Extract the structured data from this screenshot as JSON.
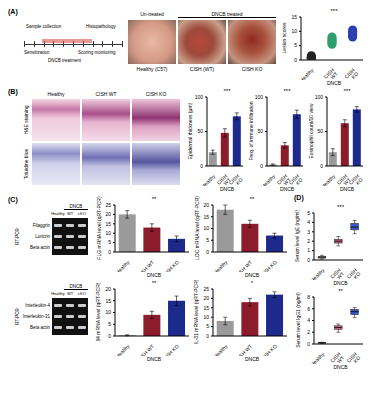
{
  "panel_labels": [
    "(A)",
    "(B)",
    "(C)",
    "(D)"
  ],
  "timeline": {
    "labels": [
      "Sample collection",
      "Sensitization",
      "DNCB treatment",
      "Scoring monitoring",
      "Histopathology"
    ]
  },
  "photos": {
    "headers": [
      "Un-treated",
      "DNCB treated"
    ],
    "labels": [
      "Healthy (C57)",
      "CISH (WT)",
      "CISH KO"
    ]
  },
  "histology": {
    "columns": [
      "Healthy",
      "CISH WT",
      "CISH KO"
    ],
    "rows": [
      "H&E staining",
      "Toluidine blue"
    ]
  },
  "gels": [
    {
      "side_label": "RT-PCR",
      "group_label": "DNCB",
      "lanes": [
        "Healthy",
        "WT",
        "cKO"
      ],
      "rows": [
        "Filaggrin",
        "Loricrin",
        "Beta actin"
      ]
    },
    {
      "side_label": "RT-PCR",
      "group_label": "DNCB",
      "lanes": [
        "Healthy",
        "WT",
        "cKO"
      ],
      "rows": [
        "Interleukin-4",
        "Interleukin-31",
        "Beta actin"
      ]
    }
  ],
  "chart_data": [
    {
      "type": "scatter",
      "y_label": "Lesion scores",
      "x_label": "DNCB",
      "categories": [
        "Healthy",
        "CISH WT",
        "CISH KO"
      ],
      "values": [
        [
          0.5,
          1,
          1,
          1.5,
          0.5,
          1
        ],
        [
          5.5,
          6,
          6.5,
          7,
          7.5,
          8
        ],
        [
          8,
          8.5,
          9,
          9.5,
          10,
          10.5
        ]
      ],
      "colors": [
        "#222222",
        "#2f9e6e",
        "#2b3fb0"
      ],
      "ylim": [
        0,
        15
      ],
      "yticks": [
        0,
        5,
        10,
        15
      ],
      "annotations": [
        "***"
      ]
    },
    {
      "type": "bar",
      "y_label": "Epidermal thickness (μm)",
      "x_label": "DNCB",
      "categories": [
        "Healthy",
        "CISH WT",
        "CISH KO"
      ],
      "values": [
        20,
        48,
        72
      ],
      "errors": [
        3,
        6,
        5
      ],
      "colors": [
        "#9a9a9a",
        "#8c1c2c",
        "#1c2a8c"
      ],
      "ylim": [
        0,
        100
      ],
      "yticks": [
        0,
        50,
        100
      ],
      "annotations": [
        "***"
      ]
    },
    {
      "type": "bar",
      "y_label": "Freq. of immune infiltration",
      "x_label": "DNCB",
      "categories": [
        "Healthy",
        "CISH WT",
        "CISH KO"
      ],
      "values": [
        2,
        30,
        75
      ],
      "errors": [
        1,
        4,
        6
      ],
      "colors": [
        "#9a9a9a",
        "#8c1c2c",
        "#1c2a8c"
      ],
      "ylim": [
        0,
        100
      ],
      "yticks": [
        0,
        50,
        100
      ],
      "annotations": [
        "***"
      ]
    },
    {
      "type": "bar",
      "y_label": "Eosinophil count/10 view",
      "x_label": "DNCB",
      "categories": [
        "Healthy",
        "CISH WT",
        "CISH KO"
      ],
      "values": [
        20,
        62,
        82
      ],
      "errors": [
        5,
        5,
        4
      ],
      "colors": [
        "#9a9a9a",
        "#8c1c2c",
        "#1c2a8c"
      ],
      "ylim": [
        0,
        100
      ],
      "yticks": [
        0,
        50,
        100
      ],
      "annotations": [
        "***"
      ]
    },
    {
      "type": "bar",
      "y_label": "FLG mRNA level (qRT-PCR)",
      "x_label": "DNCB",
      "categories": [
        "Healthy",
        "CISH WT",
        "CISH KO"
      ],
      "values": [
        20,
        13,
        7
      ],
      "errors": [
        2,
        2,
        1.5
      ],
      "colors": [
        "#9a9a9a",
        "#8c1c2c",
        "#1c2a8c"
      ],
      "ylim": [
        0,
        25
      ],
      "yticks": [
        0,
        5,
        10,
        15,
        20,
        25
      ],
      "annotations": [
        "**"
      ]
    },
    {
      "type": "bar",
      "y_label": "LOC mRNA level (qRT-PCR)",
      "x_label": "DNCB",
      "categories": [
        "Healthy",
        "CISH WT",
        "CISH KO"
      ],
      "values": [
        18,
        12,
        7
      ],
      "errors": [
        2,
        1.5,
        1
      ],
      "colors": [
        "#9a9a9a",
        "#8c1c2c",
        "#1c2a8c"
      ],
      "ylim": [
        0,
        20
      ],
      "yticks": [
        0,
        5,
        10,
        15,
        20
      ],
      "annotations": [
        "**"
      ]
    },
    {
      "type": "bar",
      "y_label": "Il4 mRNA level (qRT-PCR)",
      "x_label": "DNCB",
      "categories": [
        "Healthy",
        "CISH WT",
        "CISH KO"
      ],
      "values": [
        0.3,
        9,
        15
      ],
      "errors": [
        0.2,
        1.5,
        2
      ],
      "colors": [
        "#9a9a9a",
        "#8c1c2c",
        "#1c2a8c"
      ],
      "ylim": [
        0,
        20
      ],
      "yticks": [
        0,
        5,
        10,
        15,
        20
      ],
      "annotations": [
        "**"
      ]
    },
    {
      "type": "bar",
      "y_label": "IL-31 mRNA level (qRT-PCR)",
      "x_label": "DNCB",
      "categories": [
        "Healthy",
        "CISH WT",
        "CISH KO"
      ],
      "values": [
        8,
        18,
        22
      ],
      "errors": [
        2,
        2,
        1.5
      ],
      "colors": [
        "#9a9a9a",
        "#8c1c2c",
        "#1c2a8c"
      ],
      "ylim": [
        0,
        25
      ],
      "yticks": [
        0,
        5,
        10,
        15,
        20,
        25
      ],
      "annotations": [
        "*"
      ]
    },
    {
      "type": "box",
      "y_label": "Serum level IgE (ng/ml)",
      "x_label": "DNCB",
      "categories": [
        "Healthy",
        "CISH WT",
        "CISH KO"
      ],
      "boxes": [
        {
          "min": 0.1,
          "q1": 0.2,
          "median": 0.3,
          "q3": 0.4,
          "max": 0.5
        },
        {
          "min": 1.5,
          "q1": 1.8,
          "median": 2.0,
          "q3": 2.2,
          "max": 2.5
        },
        {
          "min": 2.8,
          "q1": 3.2,
          "median": 3.5,
          "q3": 3.9,
          "max": 4.2
        }
      ],
      "colors": [
        "#9a9a9a",
        "#c9607a",
        "#3a58c8"
      ],
      "ylim": [
        0,
        5
      ],
      "yticks": [
        0,
        1,
        2,
        3,
        4,
        5
      ],
      "annotations": [
        "***"
      ]
    },
    {
      "type": "box",
      "y_label": "Serum level IgG1 (ng/ml)",
      "x_label": "DNCB",
      "categories": [
        "Healthy",
        "CISH WT",
        "CISH KO"
      ],
      "boxes": [
        {
          "min": 0.1,
          "q1": 0.15,
          "median": 0.2,
          "q3": 0.25,
          "max": 0.3
        },
        {
          "min": 2,
          "q1": 2.5,
          "median": 2.8,
          "q3": 3.1,
          "max": 3.4
        },
        {
          "min": 4.5,
          "q1": 5,
          "median": 5.5,
          "q3": 5.9,
          "max": 6.2
        }
      ],
      "colors": [
        "#9a9a9a",
        "#c9607a",
        "#3a58c8"
      ],
      "ylim": [
        0,
        8
      ],
      "yticks": [
        0,
        2,
        4,
        6,
        8
      ],
      "annotations": [
        "**"
      ]
    }
  ]
}
